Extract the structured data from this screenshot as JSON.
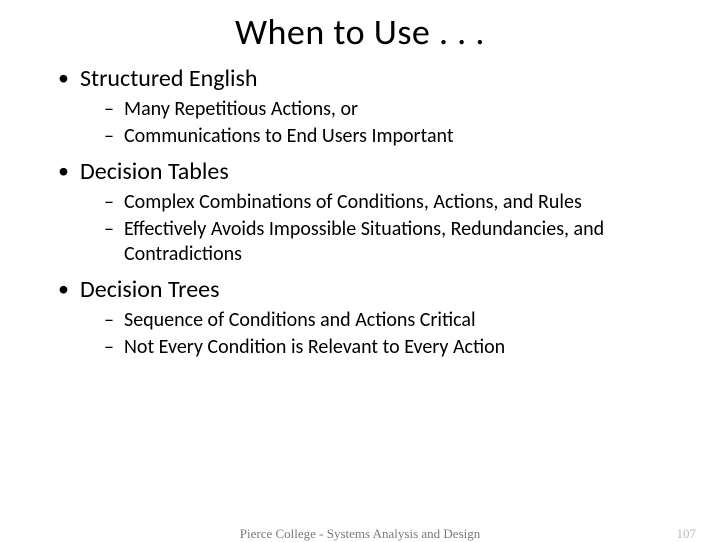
{
  "title": "When to Use . . .",
  "bullets": [
    {
      "label": "Structured English",
      "sub": [
        "Many Repetitious Actions, or",
        "Communications to End Users Important"
      ]
    },
    {
      "label": "Decision Tables",
      "sub": [
        "Complex Combinations of Conditions, Actions, and Rules",
        "Effectively Avoids Impossible Situations, Redundancies, and Contradictions"
      ]
    },
    {
      "label": "Decision Trees",
      "sub": [
        "Sequence of Conditions and Actions Critical",
        "Not Every Condition is Relevant to Every Action"
      ]
    }
  ],
  "footer": {
    "center": "Pierce College - Systems Analysis and Design",
    "page": "107"
  },
  "style": {
    "background": "#ffffff",
    "text_color": "#000000",
    "title_fontsize": 36,
    "l1_fontsize": 24,
    "l2_fontsize": 20,
    "footer_color": "#7a7a7a",
    "page_color": "#b9b9b9"
  }
}
